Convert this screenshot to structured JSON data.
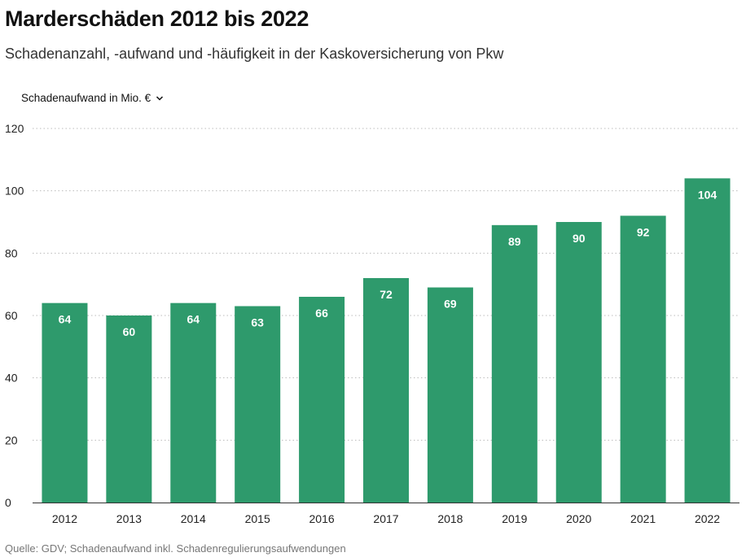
{
  "title": "Marderschäden 2012 bis 2022",
  "subtitle": "Schadenanzahl, -aufwand und -häufigkeit in der Kaskoversicherung von Pkw",
  "selector": {
    "label": "Schadenaufwand in Mio. €",
    "icon": "chevron-down-icon"
  },
  "source": "Quelle: GDV; Schadenaufwand inkl. Schadenregulierungsaufwendungen",
  "colors": {
    "bar": "#2e9a6c",
    "bar_label": "#ffffff",
    "grid": "#bbbbbb",
    "axis_text": "#222222"
  },
  "chart_data": {
    "type": "bar",
    "categories": [
      "2012",
      "2013",
      "2014",
      "2015",
      "2016",
      "2017",
      "2018",
      "2019",
      "2020",
      "2021",
      "2022"
    ],
    "values": [
      64,
      60,
      64,
      63,
      66,
      72,
      69,
      89,
      90,
      92,
      104
    ],
    "ylim": [
      0,
      120
    ],
    "yticks": [
      0,
      20,
      40,
      60,
      80,
      100,
      120
    ],
    "grid": true,
    "data_labels": true
  }
}
